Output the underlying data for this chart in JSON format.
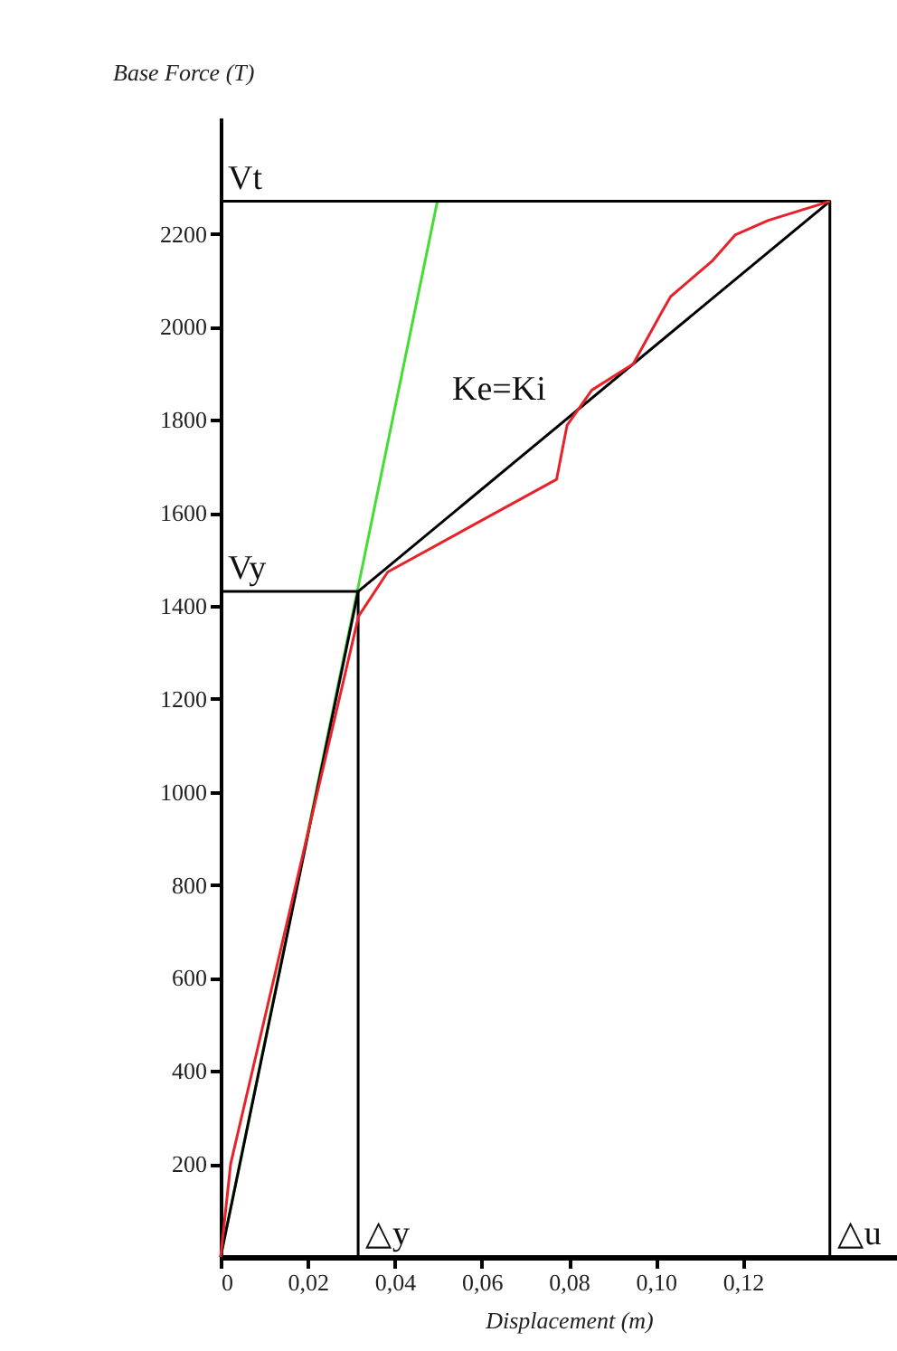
{
  "chart_data": {
    "type": "line",
    "xlabel": "Displacement (m)",
    "ylabel": "Base Force (T)",
    "xlim": [
      0,
      0.16
    ],
    "ylim": [
      0,
      2450
    ],
    "xticks": [
      0,
      {
        "value": 0.02,
        "label": "0,02"
      },
      {
        "value": 0.04,
        "label": "0,04"
      },
      {
        "value": 0.06,
        "label": "0,06"
      },
      {
        "value": 0.08,
        "label": "0,08"
      },
      {
        "value": 0.1,
        "label": "0,10"
      },
      {
        "value": 0.12,
        "label": "0,12"
      }
    ],
    "yticks": [
      200,
      400,
      600,
      800,
      1000,
      1200,
      1400,
      1600,
      1800,
      2000,
      2200
    ],
    "grid": false,
    "marker": "none",
    "line_style": "solid",
    "series": [
      {
        "color": "#44dd33",
        "x": [
          0,
          0.0498
        ],
        "values": [
          0,
          2270
        ]
      },
      {
        "color": "#000000",
        "x": [
          0,
          0.0316,
          0.0316
        ],
        "values": [
          1431,
          1431,
          0
        ]
      },
      {
        "color": "#000000",
        "x": [
          0,
          0.14,
          0.14
        ],
        "values": [
          2270,
          2270,
          0
        ]
      },
      {
        "color": "#000000",
        "x": [
          0,
          0.0316,
          0.14
        ],
        "values": [
          0,
          1431,
          2270
        ]
      },
      {
        "color": "#e8222a",
        "x": [
          0,
          0.0023,
          0.0317,
          0.0384,
          0.0772,
          0.0796,
          0.0853,
          0.0948,
          0.1015,
          0.1034,
          0.1129,
          0.1183,
          0.1259,
          0.14
        ],
        "values": [
          0,
          200,
          1378,
          1473,
          1672,
          1788,
          1864,
          1920,
          2034,
          2065,
          2141,
          2198,
          2229,
          2270
        ]
      }
    ],
    "annotations": [
      {
        "text": "Vt",
        "x": 0,
        "y": 2270
      },
      {
        "text": "Vy",
        "x": 0,
        "y": 1431
      },
      {
        "text": "△y",
        "x": 0.0316,
        "y": 0
      },
      {
        "text": "△u",
        "x": 0.14,
        "y": 0
      },
      "Ke=Ki"
    ]
  }
}
